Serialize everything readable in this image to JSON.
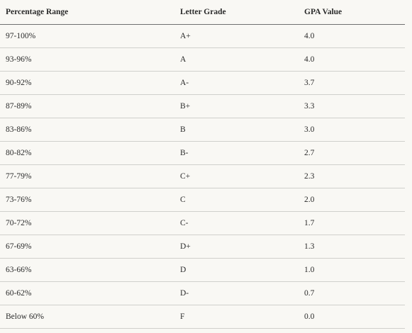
{
  "table": {
    "headers": [
      "Percentage Range",
      "Letter Grade",
      "GPA Value"
    ],
    "rows": [
      [
        "97-100%",
        "A+",
        "4.0"
      ],
      [
        "93-96%",
        "A",
        "4.0"
      ],
      [
        "90-92%",
        "A-",
        "3.7"
      ],
      [
        "87-89%",
        "B+",
        "3.3"
      ],
      [
        "83-86%",
        "B",
        "3.0"
      ],
      [
        "80-82%",
        "B-",
        "2.7"
      ],
      [
        "77-79%",
        "C+",
        "2.3"
      ],
      [
        "73-76%",
        "C",
        "2.0"
      ],
      [
        "70-72%",
        "C-",
        "1.7"
      ],
      [
        "67-69%",
        "D+",
        "1.3"
      ],
      [
        "63-66%",
        "D",
        "1.0"
      ],
      [
        "60-62%",
        "D-",
        "0.7"
      ],
      [
        "Below 60%",
        "F",
        "0.0"
      ]
    ]
  }
}
